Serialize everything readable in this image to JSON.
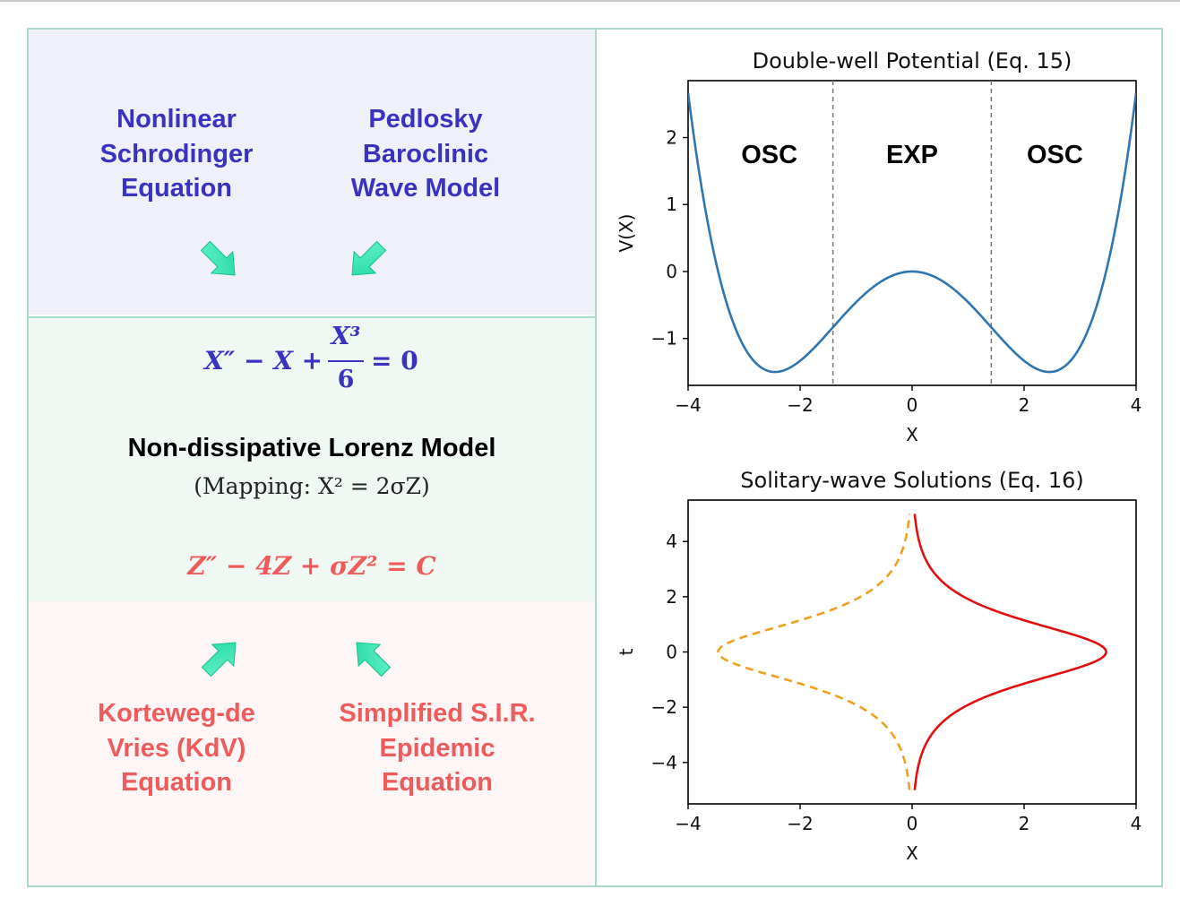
{
  "left": {
    "top_labels": [
      "Nonlinear\nSchrodinger\nEquation",
      "Pedlosky\nBaroclinic\nWave Model"
    ],
    "equation1": {
      "lhs_a": "X″ − X +",
      "num": "X³",
      "den": "6",
      "rhs": "= 0"
    },
    "lorenz_title": "Non-dissipative Lorenz Model",
    "mapping": "(Mapping:  X² = 2σZ)",
    "equation2": "Z″ − 4Z + σZ² = C",
    "bottom_labels": [
      "Korteweg-de\nVries (KdV)\nEquation",
      "Simplified S.I.R.\nEpidemic\nEquation"
    ]
  },
  "chart_data": [
    {
      "type": "line",
      "title": "Double-well Potential (Eq. 15)",
      "xlabel": "X",
      "ylabel": "V(X)",
      "xlim": [
        -4,
        4
      ],
      "ylim": [
        -1.7,
        2.85
      ],
      "xticks": [
        "−4",
        "−2",
        "0",
        "2",
        "4"
      ],
      "yticks": [
        "−1",
        "0",
        "1",
        "2"
      ],
      "xtick_values": [
        -4,
        -2,
        0,
        2,
        4
      ],
      "ytick_values": [
        -1,
        0,
        1,
        2
      ],
      "series": [
        {
          "formula": "-x^2/2 + x^4/24",
          "color": "#2f76b0",
          "style": "solid"
        }
      ],
      "vlines": [
        -1.414,
        1.414
      ],
      "region_labels": [
        {
          "text": "OSC",
          "x": -2.55,
          "y": 1.75
        },
        {
          "text": "EXP",
          "x": 0,
          "y": 1.75
        },
        {
          "text": "OSC",
          "x": 2.55,
          "y": 1.75
        }
      ],
      "grid": false
    },
    {
      "type": "line",
      "title": "Solitary-wave Solutions (Eq. 16)",
      "xlabel": "X",
      "ylabel": "t",
      "xlim": [
        -4,
        4
      ],
      "ylim": [
        -5.5,
        5.5
      ],
      "xticks": [
        "−4",
        "−2",
        "0",
        "2",
        "4"
      ],
      "yticks": [
        "−4",
        "−2",
        "0",
        "2",
        "4"
      ],
      "xtick_values": [
        -4,
        -2,
        0,
        2,
        4
      ],
      "ytick_values": [
        -4,
        -2,
        0,
        2,
        4
      ],
      "series": [
        {
          "formula": "X = 2*sqrt(3)*sech(t)",
          "color": "#e01010",
          "style": "solid"
        },
        {
          "formula": "X = -2*sqrt(3)*sech(t)",
          "color": "#f0a020",
          "style": "dashed"
        }
      ],
      "t_range": [
        -5,
        5
      ],
      "grid": false
    }
  ],
  "colors": {
    "blue": "#3a32c0",
    "red": "#ef5a5a",
    "arrow": "#3fe8b8",
    "border": "#a8dcc8"
  }
}
